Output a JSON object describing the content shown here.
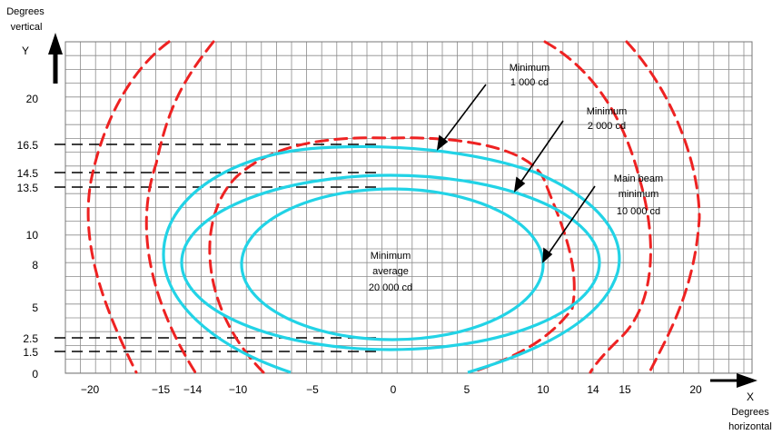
{
  "axes": {
    "y_title_line1": "Degrees",
    "y_title_line2": "vertical",
    "y_letter": "Y",
    "x_letter": "X",
    "x_title_line1": "Degrees",
    "x_title_line2": "horizontal"
  },
  "y_ticks": [
    "20",
    "16.5",
    "14.5",
    "13.5",
    "10",
    "8",
    "5",
    "2.5",
    "1.5",
    "0"
  ],
  "x_ticks": [
    "−20",
    "−15",
    "−14",
    "−10",
    "−5",
    "0",
    "5",
    "10",
    "14",
    "15",
    "20"
  ],
  "annotations": {
    "min1000_line1": "Minimum",
    "min1000_line2": "1 000 cd",
    "min2000_line1": "Minimum",
    "min2000_line2": "2 000 cd",
    "main_line1": "Main beam",
    "main_line2": "minimum",
    "main_line3": "10 000 cd",
    "avg_line1": "Minimum",
    "avg_line2": "average",
    "avg_line3": "20 000 cd"
  },
  "colors": {
    "grid": "#8c8c8c",
    "cyan_contour": "#22d3e6",
    "red_dashed": "#ee2222",
    "black": "#000000"
  },
  "chart_data": {
    "type": "diagram",
    "x_range": [
      -20,
      20
    ],
    "y_range": [
      0,
      20
    ],
    "contours_solid": [
      {
        "label": "Minimum 1 000 cd",
        "half_width_deg": 15,
        "y_bottom": 0,
        "y_top": 16.5,
        "center_y": 8
      },
      {
        "label": "Minimum 2 000 cd",
        "half_width_deg": 14,
        "y_bottom": 1.5,
        "y_top": 14.5,
        "center_y": 8
      },
      {
        "label": "Main beam minimum 10 000 cd",
        "half_width_deg": 10,
        "y_bottom": 2.5,
        "y_top": 13.5,
        "center_y": 8
      },
      {
        "label": "Minimum average 20 000 cd",
        "center_x": 0,
        "center_y": 8
      }
    ],
    "dashed_reference_lines_y": [
      16.5,
      14.5,
      13.5,
      2.5,
      1.5
    ]
  }
}
